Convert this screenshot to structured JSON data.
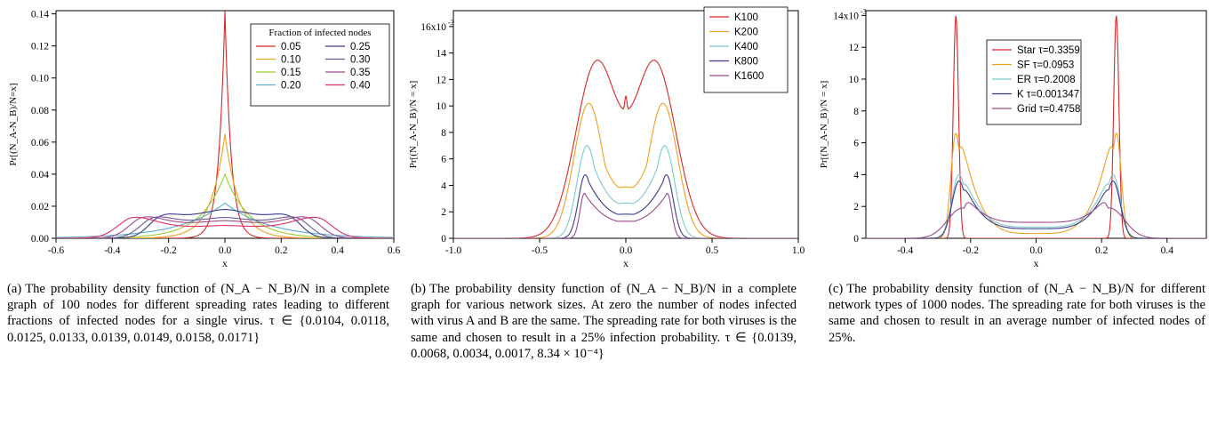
{
  "figure": {
    "panels": [
      {
        "caption_label": "(a)",
        "caption_text": "The probability density function of (N_A − N_B)/N in a complete graph of 100 nodes for different spreading rates leading to different fractions of infected nodes for a single virus. τ ∈ {0.0104, 0.0118, 0.0125, 0.0133, 0.0139, 0.0149, 0.0158, 0.0171}"
      },
      {
        "caption_label": "(b)",
        "caption_text": "The probability density function of (N_A − N_B)/N in a complete graph for various network sizes. At zero the number of nodes infected with virus A and B are the same. The spreading rate for both viruses is the same and chosen to result in a 25% infection probability. τ ∈ {0.0139, 0.0068, 0.0034, 0.0017, 8.34 × 10⁻⁴}"
      },
      {
        "caption_label": "(c)",
        "caption_text": "The probability density function of (N_A − N_B)/N for different network types of 1000 nodes. The spreading rate for both viruses is the same and chosen to result in an average number of infected nodes of 25%."
      }
    ]
  },
  "chart_data": [
    {
      "type": "line",
      "xlabel": "x",
      "ylabel": "Pr[(N_A-N_B)/N=x]",
      "xlim": [
        -0.6,
        0.6
      ],
      "ylim": [
        0,
        0.142
      ],
      "xticks": [
        -0.6,
        -0.4,
        -0.2,
        0.0,
        0.2,
        0.4,
        0.6
      ],
      "xtick_labels": [
        "-0.6",
        "-0.4",
        "-0.2",
        "0.0",
        "0.2",
        "0.4",
        "0.6"
      ],
      "yticks": [
        0,
        0.02,
        0.04,
        0.06,
        0.08,
        0.1,
        0.12,
        0.14
      ],
      "ytick_labels": [
        "0.00",
        "0.02",
        "0.04",
        "0.06",
        "0.08",
        "0.10",
        "0.12",
        "0.14"
      ],
      "legend_title": "Fraction of infected nodes",
      "legend_position": "top-right",
      "grid": false,
      "series": [
        {
          "name": "0.05",
          "color": "#d62728",
          "shape": "laplace",
          "peak": 0.142,
          "width": 0.022
        },
        {
          "name": "0.10",
          "color": "#f0a020",
          "shape": "laplace",
          "peak": 0.065,
          "width": 0.05
        },
        {
          "name": "0.15",
          "color": "#9acd32",
          "shape": "laplace",
          "peak": 0.04,
          "width": 0.085
        },
        {
          "name": "0.20",
          "color": "#5aaec8",
          "shape": "laplace",
          "peak": 0.022,
          "width": 0.16
        },
        {
          "name": "0.25",
          "color": "#3a3a8c",
          "shape": "plateau",
          "peak": 0.017,
          "center_value": 0.018,
          "edge": 0.27,
          "softness": 0.06
        },
        {
          "name": "0.30",
          "color": "#6a5a9c",
          "shape": "plateau",
          "peak": 0.016,
          "center_value": 0.013,
          "edge": 0.3,
          "softness": 0.065
        },
        {
          "name": "0.35",
          "color": "#9a4a8c",
          "shape": "plateau",
          "peak": 0.016,
          "center_value": 0.011,
          "edge": 0.34,
          "softness": 0.065
        },
        {
          "name": "0.40",
          "color": "#e0306a",
          "shape": "plateau",
          "peak": 0.016,
          "center_value": 0.008,
          "edge": 0.38,
          "softness": 0.07
        }
      ]
    },
    {
      "type": "line",
      "xlabel": "x",
      "ylabel": "Pr[(N_A-N_B)/N = x]",
      "xlim": [
        -1.0,
        1.0
      ],
      "ylim": [
        0,
        0.0172
      ],
      "xticks": [
        -1.0,
        -0.5,
        0.0,
        0.5,
        1.0
      ],
      "xtick_labels": [
        "-1.0",
        "-0.5",
        "0.0",
        "0.5",
        "1.0"
      ],
      "yticks": [
        0,
        0.002,
        0.004,
        0.006,
        0.008,
        0.01,
        0.012,
        0.014,
        0.016
      ],
      "ytick_labels": [
        "0",
        "2",
        "4",
        "6",
        "8",
        "10",
        "12",
        "14",
        "16x10"
      ],
      "y_exponent": "-3",
      "legend_position": "top-right",
      "grid": false,
      "series": [
        {
          "name": "K100",
          "color": "#d62728",
          "shape": "bimodal",
          "mu": 0.17,
          "sigma": 0.12,
          "amp": 0.0132,
          "tail": 0.07,
          "spike": 0.0011
        },
        {
          "name": "K200",
          "color": "#f0a020",
          "shape": "bimodal",
          "mu": 0.215,
          "sigma": 0.085,
          "amp": 0.0102,
          "tail": 0.04
        },
        {
          "name": "K400",
          "color": "#7ccbcf",
          "shape": "bimodal",
          "mu": 0.225,
          "sigma": 0.058,
          "amp": 0.007,
          "tail": 0.025
        },
        {
          "name": "K800",
          "color": "#3a3a8c",
          "shape": "bimodal",
          "mu": 0.235,
          "sigma": 0.04,
          "amp": 0.0048,
          "tail": 0.02
        },
        {
          "name": "K1600",
          "color": "#9a4a8c",
          "shape": "bimodal",
          "mu": 0.24,
          "sigma": 0.026,
          "amp": 0.0034,
          "tail": 0.012
        }
      ]
    },
    {
      "type": "line",
      "xlabel": "x",
      "ylabel": "Pr[(N_A-N_B)/N = x]",
      "xlim": [
        -0.52,
        0.52
      ],
      "ylim": [
        0,
        0.0143
      ],
      "xticks": [
        -0.4,
        -0.2,
        0.0,
        0.2,
        0.4
      ],
      "xtick_labels": [
        "-0.4",
        "-0.2",
        "0.0",
        "0.2",
        "0.4"
      ],
      "yticks": [
        0,
        0.002,
        0.004,
        0.006,
        0.008,
        0.01,
        0.012,
        0.014
      ],
      "ytick_labels": [
        "0",
        "2",
        "4",
        "6",
        "8",
        "10",
        "12",
        "14x10"
      ],
      "y_exponent": "-3",
      "legend_position": "top-right",
      "grid": false,
      "series": [
        {
          "name": "Star τ=0.3359",
          "color": "#d62728",
          "shape": "bimodal",
          "mu": 0.245,
          "sigma": 0.008,
          "amp": 0.014,
          "base": 0.0,
          "center_value": 0.0
        },
        {
          "name": "SF τ=0.0953",
          "color": "#f0a020",
          "shape": "bimodal",
          "mu": 0.245,
          "sigma": 0.015,
          "amp": 0.0066,
          "base": 0.0003,
          "center_value": 0.0003,
          "spread": 0.2
        },
        {
          "name": "ER τ=0.2008",
          "color": "#7ccbcf",
          "shape": "bimodal",
          "mu": 0.235,
          "sigma": 0.022,
          "amp": 0.004,
          "base": 0.0007,
          "center_value": 0.0007,
          "spread": 0.2
        },
        {
          "name": "K τ=0.001347",
          "color": "#3a3a8c",
          "shape": "bimodal",
          "mu": 0.235,
          "sigma": 0.022,
          "amp": 0.0036,
          "base": 0.0006,
          "center_value": 0.0006,
          "spread": 0.2
        },
        {
          "name": "Grid τ=0.4758",
          "color": "#9a4a8c",
          "shape": "bimodal",
          "mu": 0.225,
          "sigma": 0.045,
          "amp": 0.0019,
          "base": 0.001,
          "center_value": 0.001,
          "spread": 0.19
        }
      ]
    }
  ]
}
